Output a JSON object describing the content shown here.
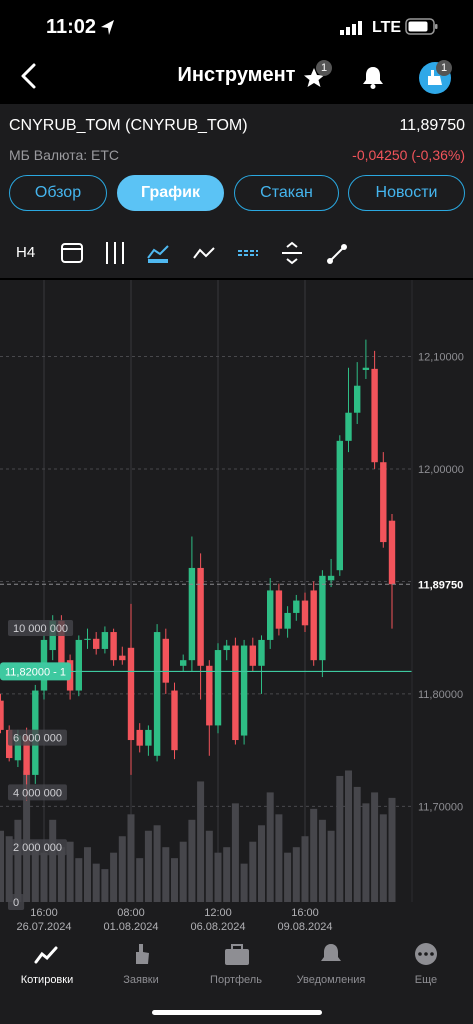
{
  "status_bar": {
    "time": "11:02",
    "network": "LTE"
  },
  "header": {
    "title": "Инструмент",
    "favorites_badge": "1",
    "avatar_badge": "1"
  },
  "instrument": {
    "name": "CNYRUB_TOM (CNYRUB_TOM)",
    "price": "11,89750",
    "market": "МБ Валюта: ETC",
    "change": "-0,04250 (-0,36%)"
  },
  "tabs": [
    "Обзор",
    "График",
    "Стакан",
    "Новости"
  ],
  "toolbar": {
    "timeframe": "H4"
  },
  "chart_data": {
    "type": "candlestick",
    "categories": [
      null,
      null,
      null,
      null,
      null,
      {
        "time": "16:00",
        "date": "26.07.2024"
      },
      null,
      null,
      null,
      null,
      null,
      null,
      null,
      null,
      null,
      {
        "time": "08:00",
        "date": "01.08.2024"
      },
      null,
      null,
      null,
      null,
      null,
      null,
      null,
      null,
      null,
      {
        "time": "12:00",
        "date": "06.08.2024"
      },
      null,
      null,
      null,
      null,
      null,
      null,
      null,
      null,
      null,
      {
        "time": "16:00",
        "date": "09.08.2024"
      },
      null,
      null,
      null,
      null,
      null,
      null,
      null,
      null,
      null,
      null
    ],
    "open": [
      11.794,
      11.768,
      11.741,
      11.763,
      11.728,
      11.803,
      11.839,
      11.865,
      11.83,
      11.803,
      11.848,
      11.849,
      11.84,
      11.855,
      11.834,
      11.841,
      11.768,
      11.754,
      11.745,
      11.849,
      11.803,
      11.825,
      11.83,
      11.912,
      11.825,
      11.772,
      11.839,
      11.843,
      11.763,
      11.843,
      11.825,
      11.848,
      11.892,
      11.858,
      11.872,
      11.883,
      11.892,
      11.83,
      11.901,
      11.91,
      12.025,
      12.05,
      12.088,
      12.089,
      12.006,
      11.954
    ],
    "high": [
      11.8,
      11.772,
      11.768,
      11.77,
      11.808,
      11.852,
      11.87,
      11.87,
      11.835,
      11.852,
      11.858,
      11.855,
      11.86,
      11.858,
      11.842,
      11.88,
      11.774,
      11.772,
      11.862,
      11.858,
      11.81,
      11.835,
      11.94,
      11.925,
      11.83,
      11.845,
      11.848,
      11.85,
      11.848,
      11.85,
      11.852,
      11.903,
      11.898,
      11.878,
      11.888,
      11.89,
      11.9,
      11.91,
      11.92,
      12.03,
      12.09,
      12.095,
      12.115,
      12.105,
      12.015,
      11.96
    ],
    "low": [
      11.765,
      11.74,
      11.735,
      11.705,
      11.72,
      11.795,
      11.83,
      11.822,
      11.795,
      11.798,
      11.84,
      11.835,
      11.836,
      11.825,
      11.826,
      11.728,
      11.748,
      11.745,
      11.74,
      11.8,
      11.742,
      11.82,
      11.82,
      11.795,
      11.745,
      11.765,
      11.83,
      11.755,
      11.755,
      11.82,
      11.8,
      11.84,
      11.852,
      11.85,
      11.865,
      11.855,
      11.825,
      11.815,
      11.895,
      11.905,
      12.015,
      12.04,
      12.08,
      12.0,
      11.93,
      11.858
    ],
    "close": [
      11.768,
      11.743,
      11.763,
      11.728,
      11.803,
      11.848,
      11.865,
      11.825,
      11.803,
      11.848,
      11.849,
      11.84,
      11.855,
      11.83,
      11.83,
      11.759,
      11.754,
      11.768,
      11.855,
      11.81,
      11.75,
      11.83,
      11.912,
      11.825,
      11.772,
      11.839,
      11.843,
      11.759,
      11.843,
      11.825,
      11.848,
      11.892,
      11.858,
      11.872,
      11.883,
      11.861,
      11.83,
      11.905,
      11.905,
      12.025,
      12.05,
      12.074,
      12.09,
      12.006,
      11.935,
      11.8975
    ],
    "up_color": "#2ebd85",
    "down_color": "#f2545b",
    "ylim": [
      11.615,
      12.168
    ],
    "yticks": [
      {
        "value": 11.7,
        "label": "11,70000"
      },
      {
        "value": 11.8,
        "label": "11,80000"
      },
      {
        "value": 11.9,
        "label": "11,90000"
      },
      {
        "value": 12.0,
        "label": "12,00000"
      },
      {
        "value": 12.1,
        "label": "12,10000"
      }
    ],
    "grid": true,
    "volume": {
      "values": [
        2600000,
        2400000,
        3000000,
        4800000,
        2200000,
        1800000,
        3000000,
        2000000,
        2200000,
        1600000,
        2000000,
        1400000,
        1200000,
        1800000,
        2400000,
        3200000,
        1600000,
        2600000,
        2800000,
        2000000,
        1600000,
        2200000,
        3000000,
        4400000,
        2600000,
        1800000,
        2000000,
        3600000,
        1400000,
        2200000,
        2800000,
        4000000,
        3200000,
        1800000,
        2000000,
        2400000,
        3400000,
        3000000,
        2600000,
        4600000,
        4800000,
        4200000,
        3600000,
        4000000,
        3200000,
        3800000
      ],
      "color": "#46464b",
      "ylim": [
        0,
        22700000
      ],
      "yticks": [
        0,
        {
          "value": 2000000,
          "label": "2 000 000"
        },
        {
          "value": 4000000,
          "label": "4 000 000"
        },
        {
          "value": 6000000,
          "label": "6 000 000"
        },
        {
          "value": 10000000,
          "label": "10 000 000"
        }
      ]
    },
    "last_price": {
      "value": 11.8975,
      "label": "11,89750"
    },
    "order_line": {
      "value": 11.82,
      "label": "11,82000 - 1",
      "color": "#3ec9a0"
    }
  },
  "bottom_nav": [
    "Котировки",
    "Заявки",
    "Портфель",
    "Уведомления",
    "Еще"
  ]
}
